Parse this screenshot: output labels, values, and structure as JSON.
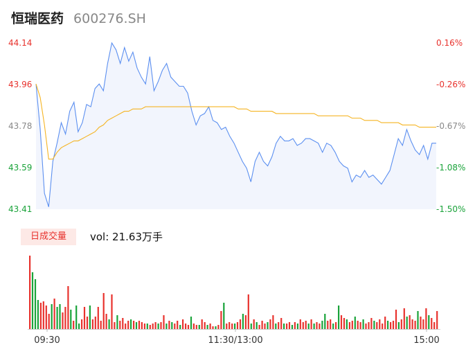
{
  "header": {
    "name": "恒瑞医药",
    "code": "600276.SH"
  },
  "volume": {
    "tab_label": "日成交量",
    "label": "vol: 21.63万手"
  },
  "colors": {
    "price_line": "#5b8ff0",
    "avg_line": "#f5b422",
    "up": "#e8322d",
    "down": "#1aa33a",
    "neutral": "#888888",
    "area": "#f2f5fd"
  },
  "chart_data": {
    "type": "line",
    "x_labels": [
      "09:30",
      "11:30/13:00",
      "15:00"
    ],
    "y_left_ticks": [
      "44.14",
      "43.96",
      "43.78",
      "43.59",
      "43.41"
    ],
    "y_right_ticks": [
      "0.16%",
      "-0.26%",
      "-0.67%",
      "-1.08%",
      "-1.50%"
    ],
    "ylim": [
      43.41,
      44.14
    ],
    "price_series": [
      43.96,
      43.76,
      43.48,
      43.42,
      43.62,
      43.7,
      43.79,
      43.74,
      43.84,
      43.88,
      43.75,
      43.79,
      43.87,
      43.86,
      43.94,
      43.96,
      43.93,
      44.05,
      44.14,
      44.11,
      44.05,
      44.12,
      44.06,
      44.1,
      44.03,
      43.99,
      43.96,
      44.08,
      43.93,
      43.97,
      44.02,
      44.05,
      43.99,
      43.97,
      43.95,
      43.95,
      43.92,
      43.84,
      43.78,
      43.82,
      43.83,
      43.86,
      43.8,
      43.79,
      43.76,
      43.77,
      43.73,
      43.7,
      43.66,
      43.62,
      43.59,
      43.53,
      43.62,
      43.66,
      43.62,
      43.6,
      43.64,
      43.7,
      43.73,
      43.71,
      43.71,
      43.72,
      43.69,
      43.7,
      43.72,
      43.72,
      43.71,
      43.7,
      43.66,
      43.7,
      43.69,
      43.66,
      43.62,
      43.6,
      43.59,
      43.53,
      43.56,
      43.55,
      43.58,
      43.55,
      43.56,
      43.54,
      43.52,
      43.55,
      43.58,
      43.65,
      43.72,
      43.69,
      43.76,
      43.71,
      43.67,
      43.65,
      43.69,
      43.63,
      43.7,
      43.7
    ],
    "avg_series": [
      43.96,
      43.9,
      43.78,
      43.63,
      43.63,
      43.66,
      43.68,
      43.69,
      43.7,
      43.71,
      43.71,
      43.72,
      43.73,
      43.74,
      43.75,
      43.77,
      43.78,
      43.8,
      43.81,
      43.82,
      43.83,
      43.84,
      43.84,
      43.85,
      43.85,
      43.85,
      43.86,
      43.86,
      43.86,
      43.86,
      43.86,
      43.86,
      43.86,
      43.86,
      43.86,
      43.86,
      43.86,
      43.86,
      43.86,
      43.86,
      43.86,
      43.86,
      43.86,
      43.86,
      43.86,
      43.86,
      43.86,
      43.86,
      43.85,
      43.85,
      43.85,
      43.84,
      43.84,
      43.84,
      43.84,
      43.84,
      43.84,
      43.83,
      43.83,
      43.83,
      43.83,
      43.83,
      43.83,
      43.83,
      43.83,
      43.83,
      43.83,
      43.82,
      43.82,
      43.82,
      43.82,
      43.82,
      43.82,
      43.82,
      43.82,
      43.81,
      43.81,
      43.81,
      43.8,
      43.8,
      43.8,
      43.8,
      43.79,
      43.79,
      43.79,
      43.79,
      43.79,
      43.78,
      43.78,
      43.78,
      43.78,
      43.77,
      43.77,
      43.77,
      43.77,
      43.77
    ],
    "volume_bars": [
      [
        106,
        "r"
      ],
      [
        82,
        "g"
      ],
      [
        72,
        "g"
      ],
      [
        42,
        "g"
      ],
      [
        38,
        "r"
      ],
      [
        40,
        "r"
      ],
      [
        34,
        "r"
      ],
      [
        22,
        "r"
      ],
      [
        36,
        "g"
      ],
      [
        44,
        "r"
      ],
      [
        32,
        "g"
      ],
      [
        36,
        "g"
      ],
      [
        24,
        "r"
      ],
      [
        32,
        "r"
      ],
      [
        62,
        "r"
      ],
      [
        28,
        "g"
      ],
      [
        12,
        "r"
      ],
      [
        34,
        "g"
      ],
      [
        8,
        "g"
      ],
      [
        14,
        "r"
      ],
      [
        32,
        "r"
      ],
      [
        18,
        "r"
      ],
      [
        34,
        "g"
      ],
      [
        14,
        "r"
      ],
      [
        18,
        "r"
      ],
      [
        32,
        "r"
      ],
      [
        12,
        "r"
      ],
      [
        52,
        "r"
      ],
      [
        22,
        "r"
      ],
      [
        14,
        "g"
      ],
      [
        50,
        "r"
      ],
      [
        10,
        "r"
      ],
      [
        20,
        "g"
      ],
      [
        12,
        "r"
      ],
      [
        16,
        "r"
      ],
      [
        8,
        "r"
      ],
      [
        12,
        "r"
      ],
      [
        14,
        "g"
      ],
      [
        12,
        "r"
      ],
      [
        10,
        "g"
      ],
      [
        12,
        "r"
      ],
      [
        10,
        "r"
      ],
      [
        8,
        "r"
      ],
      [
        8,
        "g"
      ],
      [
        6,
        "r"
      ],
      [
        8,
        "r"
      ],
      [
        10,
        "r"
      ],
      [
        8,
        "g"
      ],
      [
        10,
        "r"
      ],
      [
        20,
        "r"
      ],
      [
        8,
        "g"
      ],
      [
        12,
        "r"
      ],
      [
        10,
        "g"
      ],
      [
        8,
        "r"
      ],
      [
        12,
        "r"
      ],
      [
        6,
        "g"
      ],
      [
        14,
        "r"
      ],
      [
        8,
        "r"
      ],
      [
        6,
        "r"
      ],
      [
        18,
        "g"
      ],
      [
        8,
        "r"
      ],
      [
        6,
        "r"
      ],
      [
        6,
        "g"
      ],
      [
        14,
        "r"
      ],
      [
        10,
        "r"
      ],
      [
        6,
        "g"
      ],
      [
        8,
        "r"
      ],
      [
        4,
        "r"
      ],
      [
        4,
        "g"
      ],
      [
        6,
        "r"
      ],
      [
        26,
        "r"
      ],
      [
        38,
        "g"
      ],
      [
        8,
        "r"
      ],
      [
        10,
        "r"
      ],
      [
        8,
        "r"
      ],
      [
        8,
        "g"
      ],
      [
        10,
        "r"
      ],
      [
        14,
        "r"
      ],
      [
        22,
        "g"
      ],
      [
        20,
        "r"
      ],
      [
        50,
        "r"
      ],
      [
        8,
        "g"
      ],
      [
        14,
        "r"
      ],
      [
        10,
        "g"
      ],
      [
        6,
        "r"
      ],
      [
        12,
        "r"
      ],
      [
        8,
        "r"
      ],
      [
        10,
        "g"
      ],
      [
        14,
        "r"
      ],
      [
        20,
        "r"
      ],
      [
        8,
        "g"
      ],
      [
        10,
        "r"
      ],
      [
        16,
        "r"
      ],
      [
        8,
        "g"
      ],
      [
        8,
        "r"
      ],
      [
        10,
        "r"
      ],
      [
        6,
        "g"
      ],
      [
        10,
        "r"
      ],
      [
        8,
        "g"
      ],
      [
        14,
        "r"
      ],
      [
        10,
        "r"
      ],
      [
        12,
        "r"
      ],
      [
        8,
        "g"
      ],
      [
        14,
        "r"
      ],
      [
        8,
        "g"
      ],
      [
        10,
        "r"
      ],
      [
        8,
        "r"
      ],
      [
        12,
        "g"
      ],
      [
        22,
        "g"
      ],
      [
        12,
        "r"
      ],
      [
        14,
        "r"
      ],
      [
        8,
        "g"
      ],
      [
        10,
        "r"
      ],
      [
        34,
        "g"
      ],
      [
        20,
        "r"
      ],
      [
        16,
        "r"
      ],
      [
        14,
        "g"
      ],
      [
        10,
        "r"
      ],
      [
        12,
        "r"
      ],
      [
        18,
        "g"
      ],
      [
        12,
        "r"
      ],
      [
        10,
        "r"
      ],
      [
        14,
        "g"
      ],
      [
        8,
        "r"
      ],
      [
        10,
        "r"
      ],
      [
        16,
        "r"
      ],
      [
        12,
        "g"
      ],
      [
        10,
        "r"
      ],
      [
        14,
        "r"
      ],
      [
        8,
        "r"
      ],
      [
        18,
        "r"
      ],
      [
        12,
        "g"
      ],
      [
        10,
        "r"
      ],
      [
        12,
        "r"
      ],
      [
        28,
        "r"
      ],
      [
        10,
        "g"
      ],
      [
        14,
        "r"
      ],
      [
        30,
        "r"
      ],
      [
        18,
        "g"
      ],
      [
        20,
        "r"
      ],
      [
        14,
        "r"
      ],
      [
        12,
        "r"
      ],
      [
        26,
        "g"
      ],
      [
        18,
        "r"
      ],
      [
        14,
        "r"
      ],
      [
        30,
        "r"
      ],
      [
        20,
        "g"
      ],
      [
        16,
        "r"
      ],
      [
        10,
        "r"
      ],
      [
        26,
        "r"
      ]
    ]
  }
}
